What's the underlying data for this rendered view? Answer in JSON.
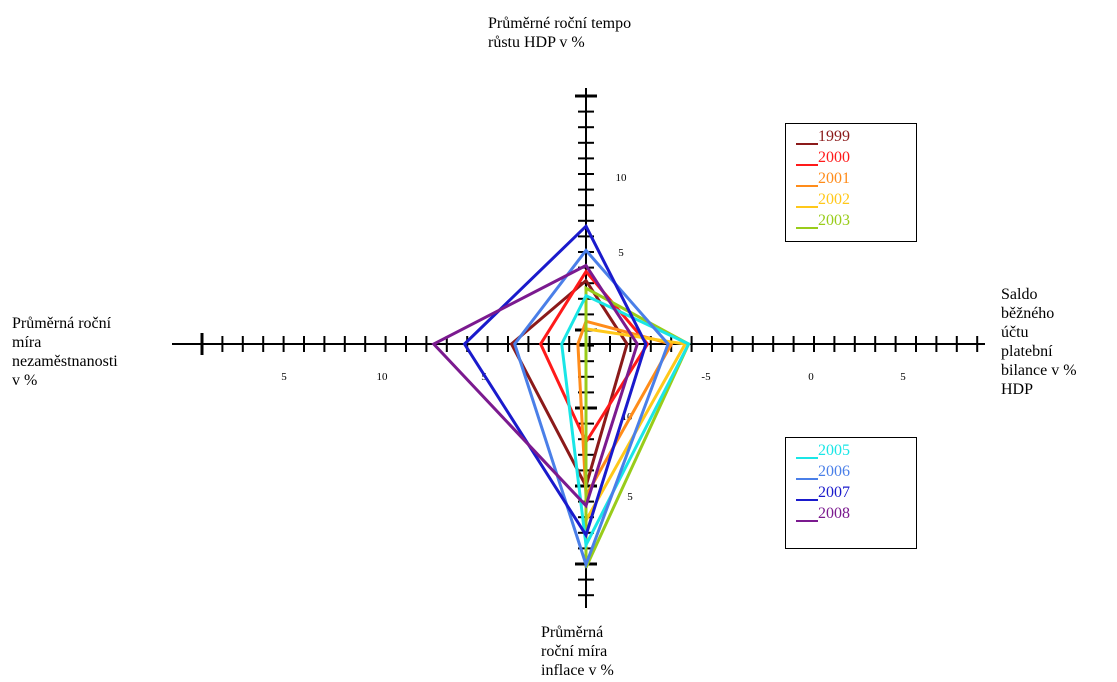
{
  "chart_data": {
    "type": "radar",
    "axes": [
      {
        "key": "gdp",
        "label": "Průměrné roční tempo\nrůstu HDP v %",
        "ticks": [
          "10",
          "5"
        ]
      },
      {
        "key": "current_account",
        "label": "Saldo\nběžného\núčtu\nplatební\nbilance v %\nHDP",
        "ticks": [
          "-5",
          "0",
          "5"
        ]
      },
      {
        "key": "inflation",
        "label": "Průměrná\nroční míra\ninflace v %",
        "ticks": [
          "10",
          "5"
        ]
      },
      {
        "key": "unemployment",
        "label": "Průměrná roční\nmíra\nnezaměstnanosti\nv %",
        "ticks": [
          "5",
          "10",
          "5"
        ]
      }
    ],
    "series": [
      {
        "name": "1999",
        "color": "#8B1A1A",
        "gdp": 4.2,
        "current_account": -2.4,
        "inflation": 14.5,
        "unemployment": 4.6
      },
      {
        "name": "2000",
        "color": "#FF1A1A",
        "gdp": 4.8,
        "current_account": -3.6,
        "inflation": 10.0,
        "unemployment": 2.8
      },
      {
        "name": "2001",
        "color": "#FF8C1A",
        "gdp": 1.5,
        "current_account": -5.0,
        "inflation": 15.5,
        "unemployment": 0.5
      },
      {
        "name": "2002",
        "color": "#FFC81A",
        "gdp": 1.0,
        "current_account": -5.8,
        "inflation": 18.0,
        "unemployment": 0.0
      },
      {
        "name": "2003",
        "color": "#99CC1A",
        "gdp": 3.7,
        "current_account": -6.0,
        "inflation": 22.8,
        "unemployment": 0.0
      },
      {
        "name": "2005",
        "color": "#1AE6E6",
        "gdp": 3.2,
        "current_account": -6.0,
        "inflation": 20.5,
        "unemployment": 1.5
      },
      {
        "name": "2006",
        "color": "#4A7FE8",
        "gdp": 6.2,
        "current_account": -4.8,
        "inflation": 22.5,
        "unemployment": 4.4
      },
      {
        "name": "2007",
        "color": "#1A1ACC",
        "gdp": 7.8,
        "current_account": -3.5,
        "inflation": 19.5,
        "unemployment": 7.5
      },
      {
        "name": "2008",
        "color": "#7B1A8F",
        "gdp": 5.2,
        "current_account": -3.0,
        "inflation": 16.5,
        "unemployment": 9.4
      }
    ],
    "legends": [
      [
        "1999",
        "2000",
        "2001",
        "2002",
        "2003"
      ],
      [
        "2005",
        "2006",
        "2007",
        "2008"
      ]
    ]
  }
}
